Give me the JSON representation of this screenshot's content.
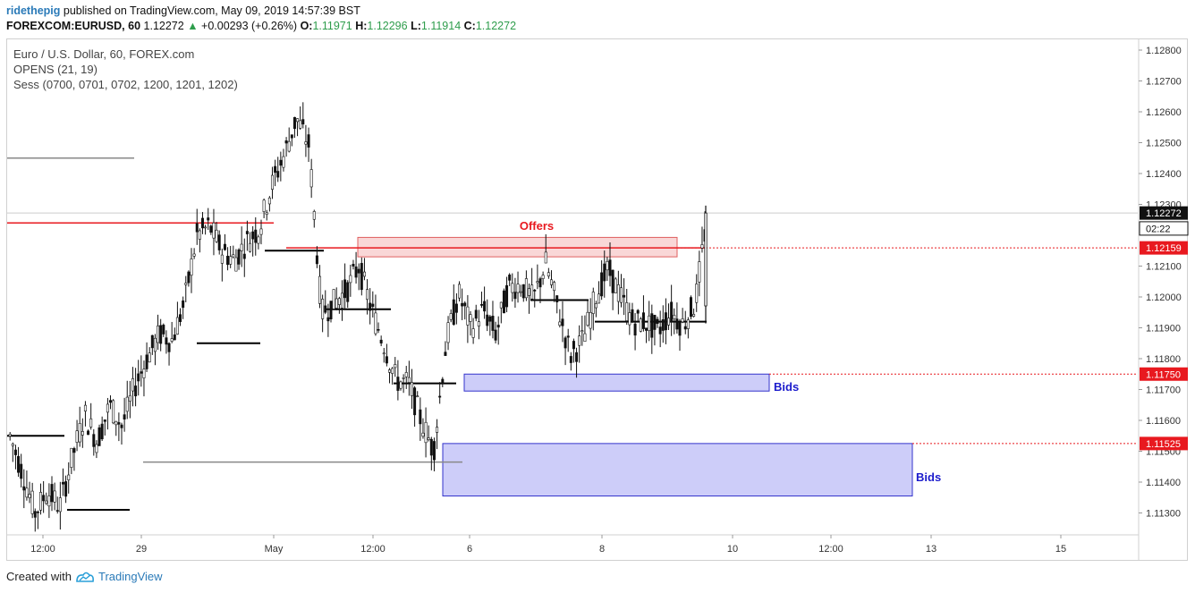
{
  "header": {
    "user": "ridethepig",
    "published": "published on TradingView.com, May 09, 2019 14:57:39 BST",
    "symbol": "FOREXCOM:EURUSD, 60",
    "last": "1.12272",
    "change_arrow": "▲",
    "change": "+0.00293 (+0.26%)",
    "o_label": "O:",
    "o_value": "1.11971",
    "h_label": "H:",
    "h_value": "1.12296",
    "l_label": "L:",
    "l_value": "1.11914",
    "c_label": "C:",
    "c_value": "1.12272"
  },
  "legend": {
    "line1": "Euro / U.S. Dollar, 60, FOREX.com",
    "line2": "OPENS (21, 19)",
    "line3": "Sess (0700, 0701, 0702, 1200, 1201, 1202)"
  },
  "footer": {
    "created_with": "Created with",
    "brand": "TradingView"
  },
  "colors": {
    "candle": "#111111",
    "offers_fill": "#f7cdcd",
    "offers_stroke": "#e06060",
    "bids_fill": "#c8c8f8",
    "bids_stroke": "#3333cc",
    "level_red": "#e8191f",
    "label_red": "#e8191f",
    "label_blue": "#1b1bcc"
  },
  "chart_data": {
    "type": "candlestick",
    "symbol": "EURUSD",
    "interval": "60",
    "ylim": [
      1.1122,
      1.1286
    ],
    "y_ticks": [
      "1.12800",
      "1.12700",
      "1.12600",
      "1.12500",
      "1.12400",
      "1.12300",
      "1.12100",
      "1.12000",
      "1.11900",
      "1.11800",
      "1.11700",
      "1.11600",
      "1.11500",
      "1.11400",
      "1.11300"
    ],
    "x_ticks": [
      "12:00",
      "29",
      "May",
      "12:00",
      "6",
      "8",
      "10",
      "12:00",
      "13",
      "15"
    ],
    "price_labels": [
      {
        "value": "1.12272",
        "style": "dark"
      },
      {
        "value": "02:22",
        "style": "countdown"
      },
      {
        "value": "1.12159",
        "style": "red"
      },
      {
        "value": "1.11750",
        "style": "red"
      },
      {
        "value": "1.11525",
        "style": "red"
      }
    ],
    "zones": [
      {
        "label": "Offers",
        "type": "offers",
        "top": 1.12193,
        "bottom": 1.1213
      },
      {
        "label": "Bids",
        "type": "bids",
        "top": 1.1175,
        "bottom": 1.11695
      },
      {
        "label": "Bids",
        "type": "bids",
        "top": 1.11525,
        "bottom": 1.11355
      }
    ],
    "levels": [
      {
        "price": 1.12159,
        "style": "dotted-red"
      },
      {
        "price": 1.1175,
        "style": "dotted-red"
      },
      {
        "price": 1.11525,
        "style": "dotted-red"
      },
      {
        "price": 1.12272,
        "style": "current-price"
      },
      {
        "price": 1.1245,
        "style": "gray"
      },
      {
        "price": 1.1224,
        "style": "red"
      },
      {
        "price": 1.11465,
        "style": "gray"
      }
    ],
    "opens_segments": [
      {
        "price": 1.1155
      },
      {
        "price": 1.1131
      },
      {
        "price": 1.1185
      },
      {
        "price": 1.1215
      },
      {
        "price": 1.1196
      },
      {
        "price": 1.1172
      },
      {
        "price": 1.1199
      },
      {
        "price": 1.1192
      }
    ],
    "candles_path": [
      1.1155,
      1.1143,
      1.113,
      1.1137,
      1.1132,
      1.1148,
      1.1162,
      1.1153,
      1.1165,
      1.1158,
      1.1171,
      1.118,
      1.1188,
      1.1186,
      1.1198,
      1.122,
      1.1223,
      1.1215,
      1.1212,
      1.1218,
      1.1222,
      1.1236,
      1.1246,
      1.1258,
      1.1249,
      1.1195,
      1.1198,
      1.1202,
      1.121,
      1.1196,
      1.1185,
      1.1173,
      1.1172,
      1.116,
      1.115,
      1.1185,
      1.1201,
      1.119,
      1.1196,
      1.1188,
      1.1203,
      1.1204,
      1.1199,
      1.1211,
      1.1196,
      1.1181,
      1.1186,
      1.12,
      1.1209,
      1.12,
      1.1192,
      1.1192,
      1.1189,
      1.1195,
      1.1191,
      1.1198,
      1.1227
    ]
  }
}
